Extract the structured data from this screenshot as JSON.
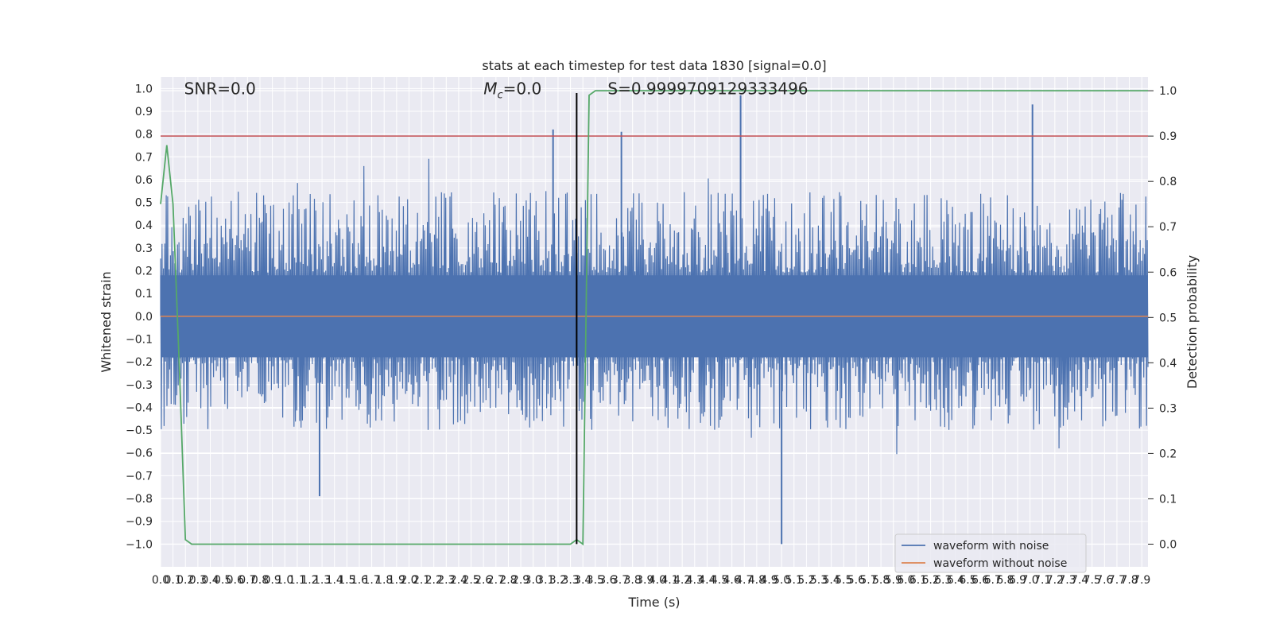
{
  "chart_data": {
    "type": "line",
    "title": "stats at each timestep for test data 1830 [signal=0.0]",
    "xlabel": "Time (s)",
    "ylabel": "Whitened strain",
    "y2label": "Detection probability",
    "xlim": [
      0.0,
      7.95
    ],
    "ylim": [
      -1.1,
      1.05
    ],
    "y2lim": [
      -0.05,
      1.03
    ],
    "x_ticks": [
      0.0,
      0.1,
      0.2,
      0.3,
      0.4,
      0.5,
      0.6,
      0.7,
      0.8,
      0.9,
      1.0,
      1.1,
      1.2,
      1.3,
      1.4,
      1.5,
      1.6,
      1.7,
      1.8,
      1.9,
      2.0,
      2.1,
      2.2,
      2.3,
      2.4,
      2.5,
      2.6,
      2.7,
      2.8,
      2.9,
      3.0,
      3.1,
      3.2,
      3.3,
      3.4,
      3.5,
      3.6,
      3.7,
      3.8,
      3.9,
      4.0,
      4.1,
      4.2,
      4.3,
      4.4,
      4.5,
      4.6,
      4.7,
      4.8,
      4.9,
      5.0,
      5.1,
      5.2,
      5.3,
      5.4,
      5.5,
      5.6,
      5.7,
      5.8,
      5.9,
      6.0,
      6.1,
      6.2,
      6.3,
      6.4,
      6.5,
      6.6,
      6.7,
      6.8,
      6.9,
      7.0,
      7.1,
      7.2,
      7.3,
      7.4,
      7.5,
      7.6,
      7.7,
      7.8,
      7.9
    ],
    "y_ticks": [
      -1.0,
      -0.9,
      -0.8,
      -0.7,
      -0.6,
      -0.5,
      -0.4,
      -0.3,
      -0.2,
      -0.1,
      0.0,
      0.1,
      0.2,
      0.3,
      0.4,
      0.5,
      0.6,
      0.7,
      0.8,
      0.9,
      1.0
    ],
    "y_tick_labels": [
      "−1.0",
      "−0.9",
      "−0.8",
      "−0.7",
      "−0.6",
      "−0.5",
      "−0.4",
      "−0.3",
      "−0.2",
      "−0.1",
      "0.0",
      "0.1",
      "0.2",
      "0.3",
      "0.4",
      "0.5",
      "0.6",
      "0.7",
      "0.8",
      "0.9",
      "1.0"
    ],
    "y2_ticks": [
      0.0,
      0.1,
      0.2,
      0.3,
      0.4,
      0.5,
      0.6,
      0.7,
      0.8,
      0.9,
      1.0
    ],
    "y2_tick_labels": [
      "0.0",
      "0.1",
      "0.2",
      "0.3",
      "0.4",
      "0.5",
      "0.6",
      "0.7",
      "0.8",
      "0.9",
      "1.0"
    ],
    "grid": true,
    "legend_position": "bottom-right",
    "series": [
      {
        "name": "waveform with noise",
        "color": "#4c72b0",
        "kind": "noisy strain, roughly within -0.7 to 0.7 with spikes up to 0.97 and down to -1.0",
        "peaks": [
          {
            "x": 3.16,
            "y": 0.82
          },
          {
            "x": 3.71,
            "y": 0.81
          },
          {
            "x": 4.67,
            "y": 0.97
          },
          {
            "x": 7.02,
            "y": 0.93
          },
          {
            "x": 5.0,
            "y": -1.0
          },
          {
            "x": 1.28,
            "y": -0.79
          }
        ],
        "envelope": {
          "upper": 0.55,
          "lower": -0.5
        }
      },
      {
        "name": "waveform without noise",
        "color": "#dd8452",
        "x": [
          0.0,
          7.95
        ],
        "y": [
          0.0,
          0.0
        ]
      }
    ],
    "detection_probability": {
      "color": "#55a868",
      "x": [
        0.0,
        0.05,
        0.1,
        0.15,
        0.2,
        0.25,
        0.3,
        1.0,
        2.0,
        2.5,
        3.0,
        3.3,
        3.35,
        3.4,
        3.45,
        3.5,
        4.0,
        5.0,
        6.0,
        7.0,
        7.95
      ],
      "y": [
        0.75,
        0.88,
        0.75,
        0.4,
        0.01,
        0.0,
        0.0,
        0.0,
        0.0,
        0.0,
        0.0,
        0.0,
        0.01,
        0.0,
        0.99,
        1.0,
        1.0,
        1.0,
        1.0,
        1.0,
        1.0
      ]
    },
    "threshold": {
      "value": 0.9,
      "axis": "y2",
      "color": "#c44e52"
    },
    "event_time": {
      "x": 3.35,
      "color": "#000000",
      "y_range": [
        -1.0,
        0.98
      ]
    },
    "annotations": [
      "SNR=0.0",
      "M_c=0.0",
      "S=0.9999709129333496"
    ]
  }
}
